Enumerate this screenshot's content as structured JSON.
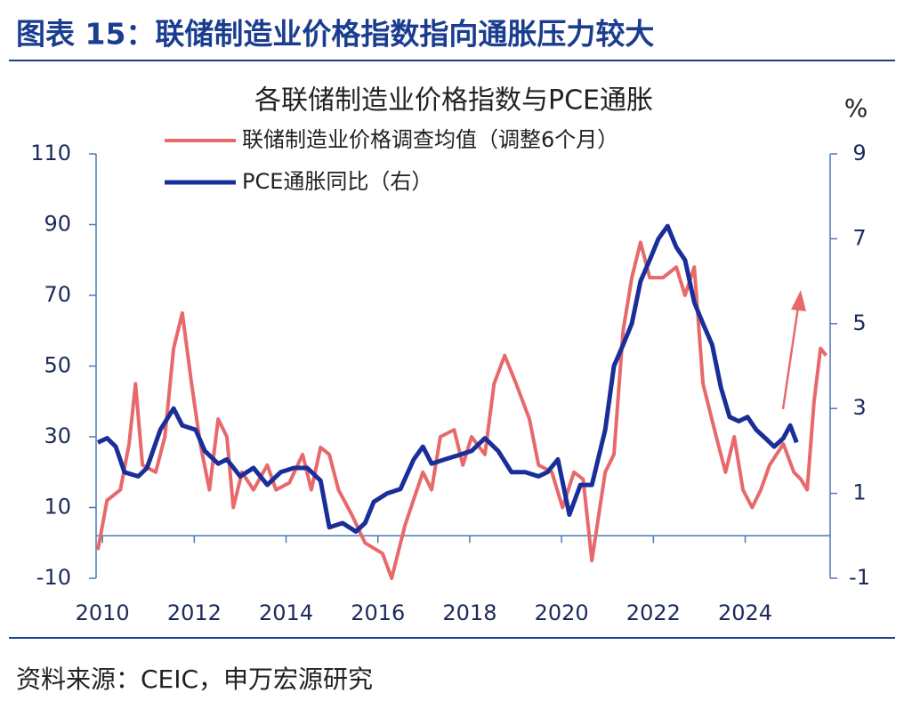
{
  "header": {
    "title": "图表 15：联储制造业价格指数指向通胀压力较大"
  },
  "footer": {
    "source": "资料来源：CEIC，申万宏源研究"
  },
  "chart_data": {
    "type": "line",
    "title": "各联储制造业价格指数与PCE通胀",
    "y2label": "%",
    "xlim": [
      2009.9,
      2025.85
    ],
    "xticks": [
      2010,
      2012,
      2014,
      2016,
      2018,
      2020,
      2022,
      2024
    ],
    "ylim": [
      -10,
      110
    ],
    "yticks": [
      -10,
      10,
      30,
      50,
      70,
      90,
      110
    ],
    "y2lim": [
      -1,
      9
    ],
    "y2ticks": [
      -1,
      1,
      3,
      5,
      7,
      9
    ],
    "series": [
      {
        "name": "联储制造业价格调查均值（调整6个月）",
        "color": "#e8696b",
        "x": [
          2009.9,
          2010.1,
          2010.39,
          2010.58,
          2010.72,
          2010.87,
          2011.16,
          2011.36,
          2011.55,
          2011.74,
          2011.94,
          2012.13,
          2012.33,
          2012.52,
          2012.71,
          2012.85,
          2013.04,
          2013.29,
          2013.59,
          2013.78,
          2014.07,
          2014.36,
          2014.55,
          2014.75,
          2014.94,
          2015.14,
          2015.43,
          2015.72,
          2016.1,
          2016.3,
          2016.59,
          2016.98,
          2017.17,
          2017.36,
          2017.66,
          2017.85,
          2018.04,
          2018.33,
          2018.53,
          2018.76,
          2019.01,
          2019.3,
          2019.5,
          2019.79,
          2020.02,
          2020.27,
          2020.47,
          2020.66,
          2020.95,
          2021.14,
          2021.34,
          2021.53,
          2021.72,
          2021.92,
          2022.21,
          2022.5,
          2022.69,
          2022.89,
          2023.08,
          2023.37,
          2023.57,
          2023.76,
          2023.95,
          2024.15,
          2024.34,
          2024.53,
          2024.83,
          2025.06,
          2025.21,
          2025.35,
          2025.5,
          2025.64,
          2025.76
        ],
        "values": [
          -2,
          12,
          15,
          28,
          45,
          22,
          20,
          30,
          55,
          65,
          45,
          28,
          15,
          35,
          30,
          10,
          20,
          15,
          22,
          15,
          17,
          25,
          15,
          27,
          25,
          15,
          8,
          0,
          -3,
          -10,
          5,
          20,
          15,
          30,
          32,
          22,
          30,
          25,
          45,
          53,
          45,
          35,
          22,
          20,
          10,
          20,
          18,
          -5,
          20,
          25,
          60,
          75,
          85,
          75,
          75,
          78,
          70,
          78,
          45,
          30,
          20,
          30,
          15,
          10,
          15,
          22,
          28,
          20,
          18,
          15,
          40,
          55,
          53
        ]
      },
      {
        "name": "PCE通胀同比（右）",
        "color": "#1a2e9a",
        "axis": "y2",
        "x": [
          2009.9,
          2010.1,
          2010.29,
          2010.48,
          2010.78,
          2010.97,
          2011.26,
          2011.55,
          2011.74,
          2012.03,
          2012.23,
          2012.52,
          2012.71,
          2013.0,
          2013.29,
          2013.59,
          2013.88,
          2014.17,
          2014.46,
          2014.75,
          2014.94,
          2015.23,
          2015.52,
          2015.72,
          2015.91,
          2016.2,
          2016.49,
          2016.78,
          2016.98,
          2017.17,
          2017.46,
          2017.75,
          2018.04,
          2018.33,
          2018.62,
          2018.91,
          2019.21,
          2019.5,
          2019.69,
          2019.92,
          2020.17,
          2020.41,
          2020.66,
          2020.95,
          2021.14,
          2021.34,
          2021.53,
          2021.72,
          2021.92,
          2022.11,
          2022.31,
          2022.5,
          2022.69,
          2022.89,
          2023.08,
          2023.28,
          2023.47,
          2023.66,
          2023.86,
          2024.05,
          2024.24,
          2024.44,
          2024.63,
          2024.83,
          2024.98,
          2025.12
        ],
        "values": [
          2.2,
          2.3,
          2.1,
          1.5,
          1.4,
          1.6,
          2.5,
          3.0,
          2.6,
          2.5,
          2.0,
          1.7,
          1.8,
          1.4,
          1.6,
          1.2,
          1.5,
          1.6,
          1.6,
          1.3,
          0.2,
          0.3,
          0.1,
          0.3,
          0.8,
          1.0,
          1.1,
          1.8,
          2.1,
          1.7,
          1.8,
          1.9,
          2.0,
          2.3,
          2.0,
          1.5,
          1.5,
          1.4,
          1.5,
          1.8,
          0.5,
          1.2,
          1.2,
          2.5,
          4.0,
          4.5,
          5.0,
          6.0,
          6.5,
          7.0,
          7.3,
          6.8,
          6.5,
          5.5,
          5.0,
          4.5,
          3.5,
          2.8,
          2.7,
          2.8,
          2.5,
          2.3,
          2.1,
          2.3,
          2.6,
          2.2
        ]
      }
    ]
  }
}
